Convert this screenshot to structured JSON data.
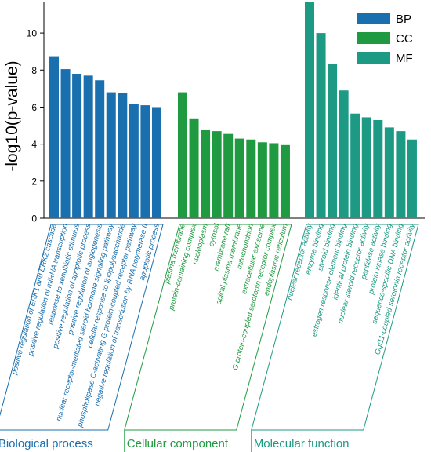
{
  "chart_data": {
    "type": "bar",
    "ylabel": "-log10(p-value)",
    "ylim": [
      0,
      11.7
    ],
    "yticks": [
      0,
      2,
      4,
      6,
      8,
      10
    ],
    "legend": {
      "placement": "top-right"
    },
    "series": [
      {
        "name": "BP",
        "color": "#1a6fae",
        "group_label": "Biological process",
        "categories": [
          "positive regulation of ERK1 and ERK2 cascade",
          "positive regulation of miRNA transcription",
          "response to xenobiotic stimulus",
          "positive regulation of apoptotic process",
          "positive regulation of angiogenesis",
          "nuclear receptor-mediated steroid hormone signaling pathway",
          "cellular response to lipopolysaccharide",
          "phospholipase C-activating G protein-coupled receptor pathway",
          "negative regulation of transcription by RNA polymerase II",
          "apoptotic process"
        ],
        "values": [
          8.75,
          8.05,
          7.8,
          7.7,
          7.45,
          6.8,
          6.75,
          6.15,
          6.1,
          6.0
        ]
      },
      {
        "name": "CC",
        "color": "#1f9a41",
        "group_label": "Cellular component",
        "categories": [
          "plasma membrane",
          "protein-containing complex",
          "nucleoplasm",
          "cytosol",
          "membrane raft",
          "apical plasma membrane",
          "mitochondrion",
          "extracellular exosome",
          "G protein-coupled serotonin receptor complex",
          "endoplasmic reticulum"
        ],
        "values": [
          6.8,
          5.35,
          4.75,
          4.7,
          4.55,
          4.3,
          4.25,
          4.1,
          4.05,
          3.95
        ]
      },
      {
        "name": "MF",
        "color": "#1c9a84",
        "group_label": "Molecular function",
        "categories": [
          "nuclear receptor activity",
          "enzyme binding",
          "steroid binding",
          "estrogen response element binding",
          "identical protein binding",
          "nuclear steroid receptor activity",
          "peptidase activity",
          "protein kinase binding",
          "sequence-specific DNA binding",
          "Gq/11-coupled serotonin receptor activity"
        ],
        "values": [
          11.7,
          10.0,
          8.35,
          6.9,
          5.65,
          5.45,
          5.3,
          4.9,
          4.7,
          4.25
        ]
      }
    ]
  }
}
